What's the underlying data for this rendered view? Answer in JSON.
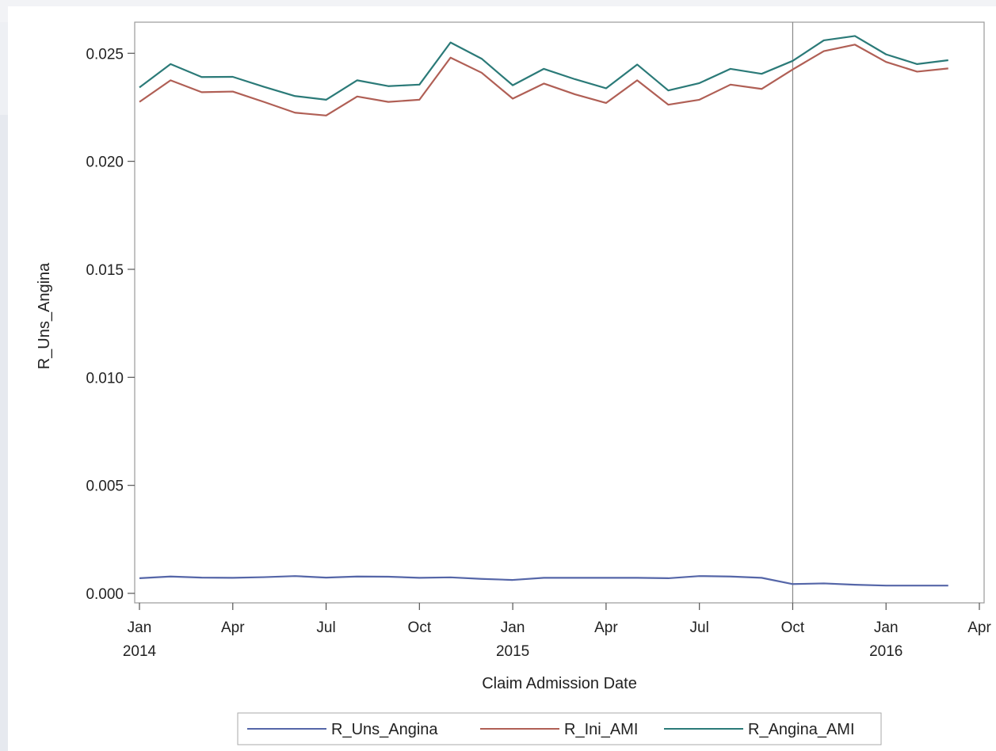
{
  "chart_data": {
    "type": "line",
    "title": "",
    "xlabel": "Claim Admission Date",
    "ylabel": "R_Uns_Angina",
    "x": [
      "2014-01",
      "2014-02",
      "2014-03",
      "2014-04",
      "2014-05",
      "2014-06",
      "2014-07",
      "2014-08",
      "2014-09",
      "2014-10",
      "2014-11",
      "2014-12",
      "2015-01",
      "2015-02",
      "2015-03",
      "2015-04",
      "2015-05",
      "2015-06",
      "2015-07",
      "2015-08",
      "2015-09",
      "2015-10",
      "2015-11",
      "2015-12",
      "2016-01",
      "2016-02",
      "2016-03"
    ],
    "series": [
      {
        "name": "R_Uns_Angina",
        "color": "#5566a8",
        "values": [
          0.0007,
          0.00078,
          0.00073,
          0.00072,
          0.00075,
          0.0008,
          0.00073,
          0.00078,
          0.00077,
          0.00072,
          0.00074,
          0.00067,
          0.00062,
          0.00072,
          0.00072,
          0.00072,
          0.00072,
          0.0007,
          0.0008,
          0.00078,
          0.00072,
          0.00043,
          0.00046,
          0.0004,
          0.00036,
          0.00036,
          0.00036
        ]
      },
      {
        "name": "R_Ini_AMI",
        "color": "#b05f55",
        "values": [
          0.02275,
          0.02375,
          0.0232,
          0.02323,
          0.02275,
          0.02225,
          0.02212,
          0.023,
          0.02275,
          0.02285,
          0.0248,
          0.0241,
          0.0229,
          0.0236,
          0.0231,
          0.0227,
          0.02375,
          0.02262,
          0.02285,
          0.02355,
          0.02335,
          0.02425,
          0.0251,
          0.0254,
          0.0246,
          0.02415,
          0.0243
        ]
      },
      {
        "name": "R_Angina_AMI",
        "color": "#2b7a78",
        "values": [
          0.02342,
          0.0245,
          0.0239,
          0.02391,
          0.02345,
          0.02302,
          0.02285,
          0.02375,
          0.02348,
          0.02355,
          0.0255,
          0.02475,
          0.02352,
          0.02428,
          0.0238,
          0.02338,
          0.02448,
          0.02328,
          0.02362,
          0.02428,
          0.02405,
          0.02465,
          0.0256,
          0.0258,
          0.02495,
          0.0245,
          0.02468
        ]
      }
    ],
    "ylim": [
      0.0,
      0.026
    ],
    "yticks": [
      0.0,
      0.005,
      0.01,
      0.015,
      0.02,
      0.025
    ],
    "ytick_labels": [
      "0.000",
      "0.005",
      "0.010",
      "0.015",
      "0.020",
      "0.025"
    ],
    "xlim": [
      "2014-01",
      "2016-04"
    ],
    "xticks": [
      {
        "date": "2014-01",
        "month": "Jan",
        "year": "2014"
      },
      {
        "date": "2014-04",
        "month": "Apr",
        "year": ""
      },
      {
        "date": "2014-07",
        "month": "Jul",
        "year": ""
      },
      {
        "date": "2014-10",
        "month": "Oct",
        "year": ""
      },
      {
        "date": "2015-01",
        "month": "Jan",
        "year": "2015"
      },
      {
        "date": "2015-04",
        "month": "Apr",
        "year": ""
      },
      {
        "date": "2015-07",
        "month": "Jul",
        "year": ""
      },
      {
        "date": "2015-10",
        "month": "Oct",
        "year": ""
      },
      {
        "date": "2016-01",
        "month": "Jan",
        "year": "2016"
      },
      {
        "date": "2016-04",
        "month": "Apr",
        "year": ""
      }
    ],
    "reference_line": {
      "x": "2015-10",
      "orientation": "vertical",
      "color": "#888888"
    },
    "grid": false,
    "legend": {
      "position": "bottom",
      "entries": [
        "R_Uns_Angina",
        "R_Ini_AMI",
        "R_Angina_AMI"
      ]
    }
  }
}
